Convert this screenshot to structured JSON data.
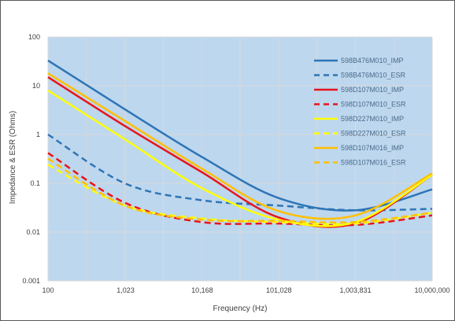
{
  "chart_data": {
    "type": "line",
    "title": "",
    "xlabel": "Frequency (Hz)",
    "ylabel": "Impedance & ESR (Ohms)",
    "x_scale": "log",
    "y_scale": "log",
    "xlim": [
      100,
      10000000
    ],
    "ylim": [
      0.001,
      100
    ],
    "x_tick_labels": [
      "100",
      "1,023",
      "10,168",
      "101,028",
      "1,003,831",
      "10,000,000"
    ],
    "x_tick_values": [
      100,
      1023,
      10168,
      101028,
      1003831,
      10000000
    ],
    "y_tick_labels": [
      "100",
      "10",
      "1",
      "0.1",
      "0.01",
      "0.001"
    ],
    "y_tick_values": [
      100,
      10,
      1,
      0.1,
      0.01,
      0.001
    ],
    "grid": true,
    "plot_background": "#bdd7ee",
    "legend_position": "right",
    "x": [
      100,
      1000,
      10000,
      100000,
      1000000,
      10000000
    ],
    "series": [
      {
        "name": "598B476M010_IMP",
        "color": "#2e75b6",
        "dash": "solid",
        "values": [
          33,
          3.3,
          0.35,
          0.05,
          0.028,
          0.075
        ]
      },
      {
        "name": "598B476M010_ESR",
        "color": "#2e75b6",
        "dash": "dashed",
        "values": [
          1.0,
          0.1,
          0.045,
          0.035,
          0.028,
          0.03
        ]
      },
      {
        "name": "598D107M010_IMP",
        "color": "#e8141c",
        "dash": "solid",
        "values": [
          15,
          1.5,
          0.17,
          0.02,
          0.015,
          0.15
        ]
      },
      {
        "name": "598D107M010_ESR",
        "color": "#e8141c",
        "dash": "dashed",
        "values": [
          0.42,
          0.04,
          0.016,
          0.015,
          0.014,
          0.022
        ]
      },
      {
        "name": "598D227M010_IMP",
        "color": "#ffff00",
        "dash": "solid",
        "values": [
          8,
          0.8,
          0.08,
          0.018,
          0.016,
          0.15
        ]
      },
      {
        "name": "598D227M010_ESR",
        "color": "#ffff00",
        "dash": "dashed",
        "values": [
          0.24,
          0.035,
          0.019,
          0.016,
          0.015,
          0.025
        ]
      },
      {
        "name": "598D107M016_IMP",
        "color": "#ffc000",
        "dash": "solid",
        "values": [
          18,
          1.9,
          0.2,
          0.027,
          0.022,
          0.16
        ]
      },
      {
        "name": "598D107M016_ESR",
        "color": "#ffc000",
        "dash": "dashed",
        "values": [
          0.32,
          0.035,
          0.018,
          0.017,
          0.016,
          0.025
        ]
      }
    ]
  }
}
